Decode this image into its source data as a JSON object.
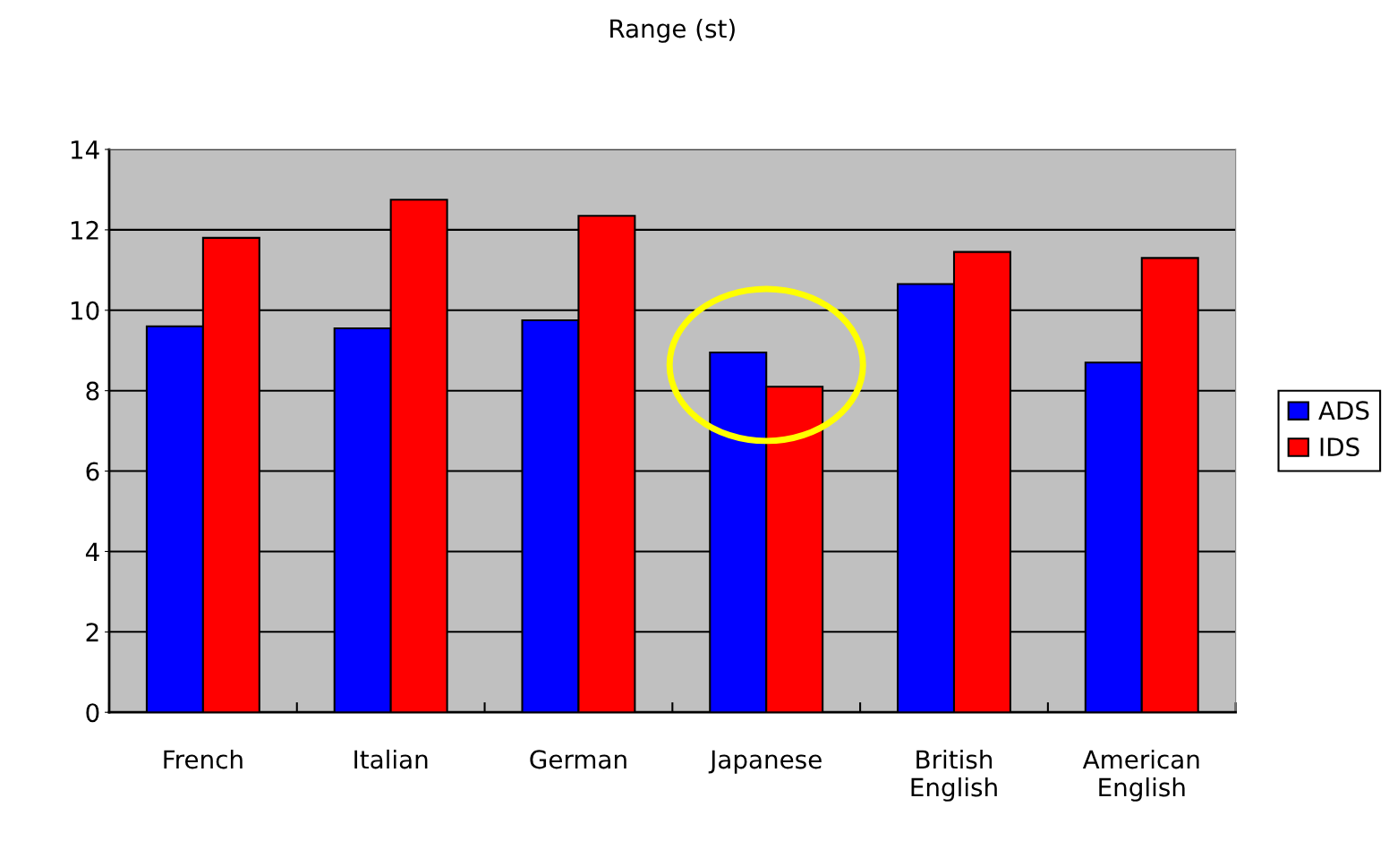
{
  "chart_data": {
    "type": "bar",
    "title": "Range (st)",
    "categories": [
      "French",
      "Italian",
      "German",
      "Japanese",
      "British\nEnglish",
      "American\nEnglish"
    ],
    "series": [
      {
        "name": "ADS",
        "color": "#0000ff",
        "values": [
          9.6,
          9.55,
          9.75,
          8.95,
          10.65,
          8.7
        ]
      },
      {
        "name": "IDS",
        "color": "#ff0000",
        "values": [
          11.8,
          12.75,
          12.35,
          8.1,
          11.45,
          11.3
        ]
      }
    ],
    "ylim": [
      0,
      14
    ],
    "yticks": [
      0,
      2,
      4,
      6,
      8,
      10,
      12,
      14
    ],
    "grid": "y",
    "legend": "right"
  }
}
